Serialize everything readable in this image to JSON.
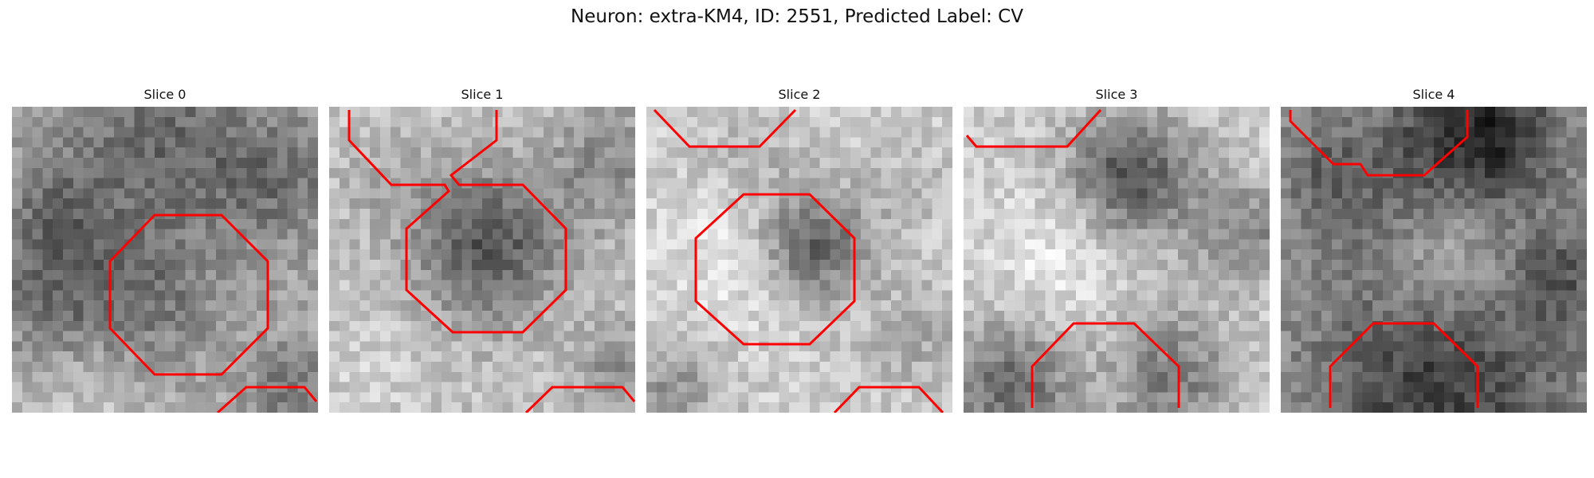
{
  "figure": {
    "title": "Neuron: extra-KM4, ID: 2551, Predicted Label: CV"
  },
  "slices": [
    {
      "title": "Slice 0"
    },
    {
      "title": "Slice 1"
    },
    {
      "title": "Slice 2"
    },
    {
      "title": "Slice 3"
    },
    {
      "title": "Slice 4"
    }
  ],
  "colors": {
    "contour": "#ff0000",
    "background": "#ffffff"
  }
}
